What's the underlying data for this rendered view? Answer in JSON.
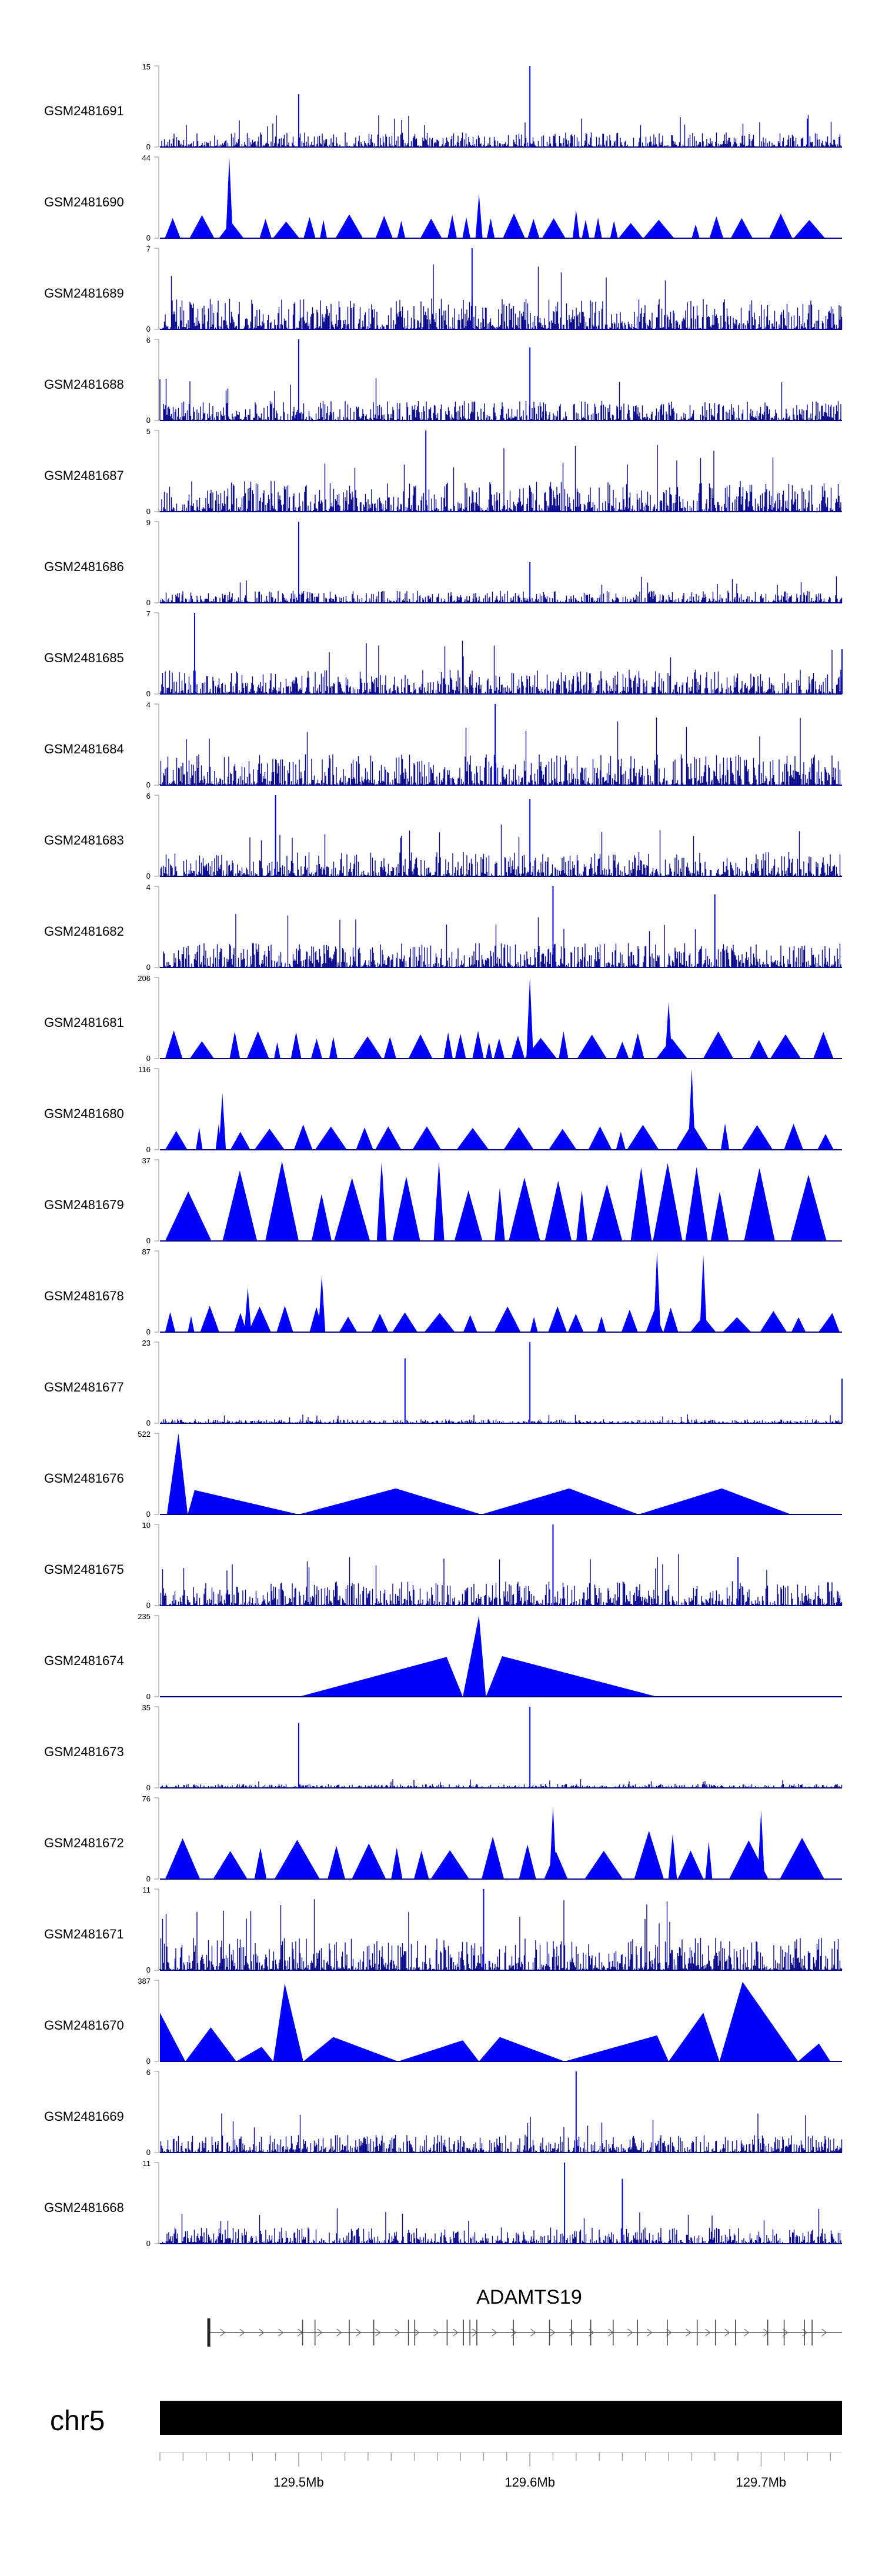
{
  "chart_data": {
    "type": "area",
    "color": "#0000ff",
    "baseline_color": "#00008b",
    "x_axis": {
      "chromosome": "chr5",
      "range_mb": [
        129.44,
        129.735
      ],
      "ticks": [
        {
          "value": 129.5,
          "label": "129.5Mb"
        },
        {
          "value": 129.6,
          "label": "129.6Mb"
        },
        {
          "value": 129.7,
          "label": "129.7Mb"
        }
      ]
    },
    "gene": {
      "name": "ADAMTS19",
      "start_mb": 129.461,
      "end_mb": 129.735,
      "strand": "+"
    },
    "tracks": [
      {
        "name": "GSM2481691",
        "ymax": 15,
        "kind": "noise",
        "seed": 11,
        "level": 0.18,
        "spikes": [
          [
            129.5,
            0.65
          ],
          [
            129.6,
            1.0
          ],
          [
            129.72,
            0.35
          ]
        ]
      },
      {
        "name": "GSM2481690",
        "ymax": 44,
        "kind": "tri",
        "seed": 23,
        "level": 0.28,
        "spikes": [
          [
            129.47,
            1.0
          ],
          [
            129.578,
            0.55
          ],
          [
            129.62,
            0.35
          ]
        ]
      },
      {
        "name": "GSM2481689",
        "ymax": 7,
        "kind": "noise",
        "seed": 37,
        "level": 0.38,
        "spikes": [
          [
            129.575,
            1.0
          ]
        ]
      },
      {
        "name": "GSM2481688",
        "ymax": 6,
        "kind": "noise",
        "seed": 41,
        "level": 0.24,
        "spikes": [
          [
            129.5,
            1.0
          ],
          [
            129.6,
            0.9
          ]
        ]
      },
      {
        "name": "GSM2481687",
        "ymax": 5,
        "kind": "noise",
        "seed": 53,
        "level": 0.38,
        "spikes": [
          [
            129.555,
            1.0
          ]
        ]
      },
      {
        "name": "GSM2481686",
        "ymax": 9,
        "kind": "noise",
        "seed": 61,
        "level": 0.15,
        "spikes": [
          [
            129.5,
            1.0
          ],
          [
            129.6,
            0.5
          ]
        ]
      },
      {
        "name": "GSM2481685",
        "ymax": 7,
        "kind": "noise",
        "seed": 71,
        "level": 0.3,
        "spikes": [
          [
            129.455,
            1.0
          ],
          [
            129.735,
            0.55
          ]
        ]
      },
      {
        "name": "GSM2481684",
        "ymax": 4,
        "kind": "noise",
        "seed": 79,
        "level": 0.38,
        "spikes": [
          [
            129.585,
            1.0
          ]
        ]
      },
      {
        "name": "GSM2481683",
        "ymax": 6,
        "kind": "noise",
        "seed": 83,
        "level": 0.3,
        "spikes": [
          [
            129.49,
            1.0
          ],
          [
            129.6,
            0.95
          ]
        ]
      },
      {
        "name": "GSM2481682",
        "ymax": 4,
        "kind": "noise",
        "seed": 97,
        "level": 0.3,
        "spikes": [
          [
            129.61,
            1.0
          ],
          [
            129.68,
            0.9
          ]
        ]
      },
      {
        "name": "GSM2481681",
        "ymax": 206,
        "kind": "tri",
        "seed": 101,
        "level": 0.32,
        "spikes": [
          [
            129.6,
            1.0
          ],
          [
            129.66,
            0.7
          ]
        ]
      },
      {
        "name": "GSM2481680",
        "ymax": 116,
        "kind": "tri",
        "seed": 103,
        "level": 0.3,
        "spikes": [
          [
            129.67,
            1.0
          ],
          [
            129.467,
            0.7
          ]
        ]
      },
      {
        "name": "GSM2481679",
        "ymax": 37,
        "kind": "tri",
        "seed": 107,
        "level": 0.95,
        "spikes": []
      },
      {
        "name": "GSM2481678",
        "ymax": 87,
        "kind": "tri",
        "seed": 109,
        "level": 0.3,
        "spikes": [
          [
            129.655,
            1.0
          ],
          [
            129.675,
            0.95
          ],
          [
            129.51,
            0.7
          ],
          [
            129.478,
            0.55
          ]
        ]
      },
      {
        "name": "GSM2481677",
        "ymax": 23,
        "kind": "noise",
        "seed": 113,
        "level": 0.05,
        "spikes": [
          [
            129.546,
            0.8
          ],
          [
            129.6,
            1.0
          ],
          [
            129.735,
            0.55
          ]
        ]
      },
      {
        "name": "GSM2481676",
        "ymax": 522,
        "kind": "custom",
        "seed": 0,
        "level": 0,
        "spikes": [],
        "poly": [
          [
            129.443,
            0.0
          ],
          [
            129.448,
            1.0
          ],
          [
            129.452,
            0.0
          ],
          [
            129.455,
            0.3
          ],
          [
            129.5,
            0.0
          ],
          [
            129.542,
            0.32
          ],
          [
            129.579,
            0.0
          ],
          [
            129.617,
            0.32
          ],
          [
            129.647,
            0.0
          ],
          [
            129.683,
            0.32
          ],
          [
            129.713,
            0.0
          ]
        ]
      },
      {
        "name": "GSM2481675",
        "ymax": 10,
        "kind": "noise",
        "seed": 127,
        "level": 0.3,
        "spikes": [
          [
            129.61,
            1.0
          ],
          [
            129.69,
            0.6
          ]
        ]
      },
      {
        "name": "GSM2481674",
        "ymax": 235,
        "kind": "custom",
        "seed": 0,
        "level": 0,
        "spikes": [],
        "poly": [
          [
            129.5,
            0.0
          ],
          [
            129.564,
            0.49
          ],
          [
            129.571,
            0.0
          ],
          [
            129.578,
            1.0
          ],
          [
            129.581,
            0.0
          ],
          [
            129.588,
            0.5
          ],
          [
            129.655,
            0.0
          ]
        ]
      },
      {
        "name": "GSM2481673",
        "ymax": 35,
        "kind": "noise",
        "seed": 131,
        "level": 0.05,
        "spikes": [
          [
            129.5,
            0.8
          ],
          [
            129.6,
            1.0
          ]
        ]
      },
      {
        "name": "GSM2481672",
        "ymax": 76,
        "kind": "tri",
        "seed": 137,
        "level": 0.55,
        "spikes": [
          [
            129.61,
            0.9
          ],
          [
            129.7,
            0.85
          ]
        ]
      },
      {
        "name": "GSM2481671",
        "ymax": 11,
        "kind": "noise",
        "seed": 139,
        "level": 0.4,
        "spikes": [
          [
            129.58,
            1.0
          ]
        ]
      },
      {
        "name": "GSM2481670",
        "ymax": 387,
        "kind": "custom",
        "seed": 0,
        "level": 0,
        "spikes": [],
        "poly": [
          [
            129.44,
            0.6
          ],
          [
            129.451,
            0.0
          ],
          [
            129.462,
            0.42
          ],
          [
            129.473,
            0.0
          ],
          [
            129.484,
            0.18
          ],
          [
            129.489,
            0.0
          ],
          [
            129.494,
            0.96
          ],
          [
            129.502,
            0.0
          ],
          [
            129.515,
            0.3
          ],
          [
            129.543,
            0.0
          ],
          [
            129.571,
            0.26
          ],
          [
            129.578,
            0.0
          ],
          [
            129.587,
            0.3
          ],
          [
            129.615,
            0.0
          ],
          [
            129.655,
            0.32
          ],
          [
            129.66,
            0.0
          ],
          [
            129.675,
            0.6
          ],
          [
            129.682,
            0.0
          ],
          [
            129.692,
            0.98
          ],
          [
            129.716,
            0.0
          ],
          [
            129.725,
            0.22
          ],
          [
            129.73,
            0.0
          ]
        ]
      },
      {
        "name": "GSM2481669",
        "ymax": 6,
        "kind": "noise",
        "seed": 149,
        "level": 0.22,
        "spikes": [
          [
            129.62,
            1.0
          ]
        ]
      },
      {
        "name": "GSM2481668",
        "ymax": 11,
        "kind": "noise",
        "seed": 151,
        "level": 0.2,
        "spikes": [
          [
            129.615,
            1.0
          ],
          [
            129.64,
            0.8
          ]
        ]
      }
    ]
  }
}
